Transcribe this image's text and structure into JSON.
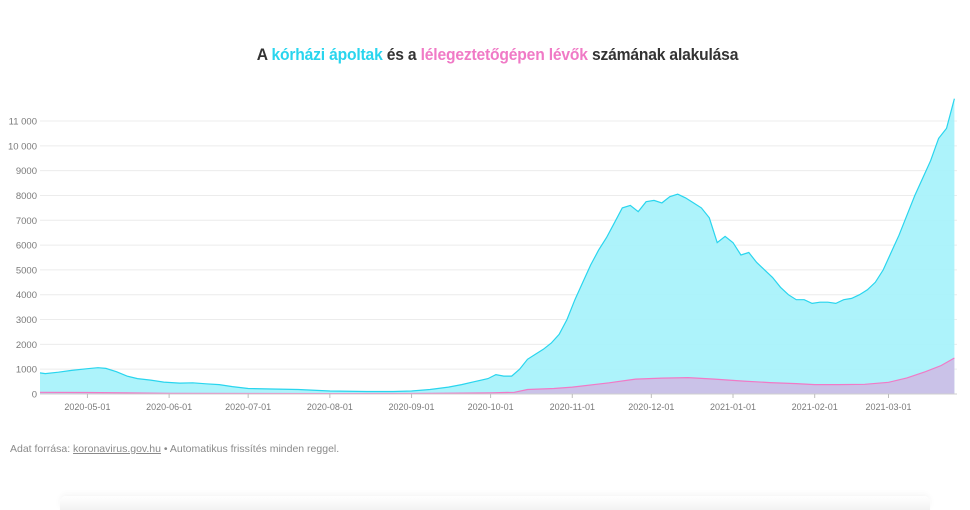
{
  "title": {
    "part1": "A ",
    "hosp_label": "kórházi ápoltak",
    "part2": " és a ",
    "vent_label": "lélegeztetőgépen lévők",
    "part3": " számának alakulása"
  },
  "colors": {
    "hospital": "#29d5ee",
    "hospital_fill": "#a9f2fb",
    "ventilator": "#f07ac6",
    "ventilator_fill": "#cdbde6",
    "title": "#333333"
  },
  "source": {
    "prefix": "Adat forrása:",
    "link": "koronavirus.gov.hu",
    "suffix": "• Automatikus frissítés minden reggel."
  },
  "chart_data": {
    "type": "area",
    "title": "A kórházi ápoltak és a lélegeztetőgépen lévők számának alakulása",
    "xlabel": "",
    "ylabel": "",
    "ylim": [
      0,
      11000
    ],
    "xlim": [
      "2020-04-13",
      "2021-03-27"
    ],
    "grid": true,
    "y_ticks": [
      0,
      1000,
      2000,
      3000,
      4000,
      5000,
      6000,
      7000,
      8000,
      9000,
      10000,
      11000
    ],
    "y_tick_labels": [
      "0",
      "1000",
      "2000",
      "3000",
      "4000",
      "5000",
      "6000",
      "7000",
      "8000",
      "9000",
      "10 000",
      "11 000"
    ],
    "x_ticks": [
      "2020-05-01",
      "2020-06-01",
      "2020-07-01",
      "2020-08-01",
      "2020-09-01",
      "2020-10-01",
      "2020-11-01",
      "2020-12-01",
      "2021-01-01",
      "2021-02-01",
      "2021-03-01"
    ],
    "series": [
      {
        "name": "kórházi ápoltak",
        "points": [
          [
            "2020-04-13",
            850
          ],
          [
            "2020-04-15",
            820
          ],
          [
            "2020-04-20",
            880
          ],
          [
            "2020-04-25",
            950
          ],
          [
            "2020-05-01",
            1020
          ],
          [
            "2020-05-05",
            1060
          ],
          [
            "2020-05-08",
            1030
          ],
          [
            "2020-05-12",
            900
          ],
          [
            "2020-05-16",
            720
          ],
          [
            "2020-05-20",
            620
          ],
          [
            "2020-05-25",
            560
          ],
          [
            "2020-05-30",
            480
          ],
          [
            "2020-06-05",
            440
          ],
          [
            "2020-06-10",
            450
          ],
          [
            "2020-06-15",
            410
          ],
          [
            "2020-06-20",
            380
          ],
          [
            "2020-06-25",
            300
          ],
          [
            "2020-07-01",
            220
          ],
          [
            "2020-07-10",
            200
          ],
          [
            "2020-07-20",
            180
          ],
          [
            "2020-08-01",
            120
          ],
          [
            "2020-08-15",
            100
          ],
          [
            "2020-08-25",
            100
          ],
          [
            "2020-09-01",
            120
          ],
          [
            "2020-09-08",
            180
          ],
          [
            "2020-09-15",
            280
          ],
          [
            "2020-09-20",
            380
          ],
          [
            "2020-09-25",
            500
          ],
          [
            "2020-09-30",
            620
          ],
          [
            "2020-10-03",
            780
          ],
          [
            "2020-10-06",
            720
          ],
          [
            "2020-10-09",
            720
          ],
          [
            "2020-10-12",
            1000
          ],
          [
            "2020-10-15",
            1400
          ],
          [
            "2020-10-18",
            1600
          ],
          [
            "2020-10-21",
            1800
          ],
          [
            "2020-10-24",
            2050
          ],
          [
            "2020-10-27",
            2400
          ],
          [
            "2020-10-30",
            3000
          ],
          [
            "2020-11-02",
            3800
          ],
          [
            "2020-11-05",
            4500
          ],
          [
            "2020-11-08",
            5200
          ],
          [
            "2020-11-11",
            5800
          ],
          [
            "2020-11-14",
            6300
          ],
          [
            "2020-11-17",
            6900
          ],
          [
            "2020-11-20",
            7500
          ],
          [
            "2020-11-23",
            7600
          ],
          [
            "2020-11-26",
            7350
          ],
          [
            "2020-11-29",
            7750
          ],
          [
            "2020-12-02",
            7800
          ],
          [
            "2020-12-05",
            7700
          ],
          [
            "2020-12-08",
            7950
          ],
          [
            "2020-12-11",
            8050
          ],
          [
            "2020-12-14",
            7900
          ],
          [
            "2020-12-17",
            7700
          ],
          [
            "2020-12-20",
            7500
          ],
          [
            "2020-12-23",
            7100
          ],
          [
            "2020-12-26",
            6100
          ],
          [
            "2020-12-29",
            6350
          ],
          [
            "2021-01-01",
            6100
          ],
          [
            "2021-01-04",
            5600
          ],
          [
            "2021-01-07",
            5700
          ],
          [
            "2021-01-10",
            5300
          ],
          [
            "2021-01-13",
            5000
          ],
          [
            "2021-01-16",
            4700
          ],
          [
            "2021-01-19",
            4300
          ],
          [
            "2021-01-22",
            4000
          ],
          [
            "2021-01-25",
            3800
          ],
          [
            "2021-01-28",
            3800
          ],
          [
            "2021-01-31",
            3650
          ],
          [
            "2021-02-03",
            3700
          ],
          [
            "2021-02-06",
            3700
          ],
          [
            "2021-02-09",
            3650
          ],
          [
            "2021-02-12",
            3800
          ],
          [
            "2021-02-15",
            3850
          ],
          [
            "2021-02-18",
            4000
          ],
          [
            "2021-02-21",
            4200
          ],
          [
            "2021-02-24",
            4500
          ],
          [
            "2021-02-27",
            5000
          ],
          [
            "2021-03-02",
            5700
          ],
          [
            "2021-03-05",
            6400
          ],
          [
            "2021-03-08",
            7200
          ],
          [
            "2021-03-11",
            8000
          ],
          [
            "2021-03-14",
            8700
          ],
          [
            "2021-03-17",
            9400
          ],
          [
            "2021-03-20",
            10300
          ],
          [
            "2021-03-23",
            10700
          ],
          [
            "2021-03-26",
            11900
          ]
        ]
      },
      {
        "name": "lélegeztetőgépen lévők",
        "points": [
          [
            "2020-04-13",
            70
          ],
          [
            "2020-05-01",
            60
          ],
          [
            "2020-06-01",
            30
          ],
          [
            "2020-07-01",
            20
          ],
          [
            "2020-08-01",
            15
          ],
          [
            "2020-09-01",
            20
          ],
          [
            "2020-09-20",
            35
          ],
          [
            "2020-10-01",
            50
          ],
          [
            "2020-10-10",
            70
          ],
          [
            "2020-10-15",
            180
          ],
          [
            "2020-10-25",
            220
          ],
          [
            "2020-11-01",
            280
          ],
          [
            "2020-11-15",
            450
          ],
          [
            "2020-11-25",
            600
          ],
          [
            "2020-12-05",
            640
          ],
          [
            "2020-12-15",
            660
          ],
          [
            "2020-12-25",
            600
          ],
          [
            "2021-01-05",
            520
          ],
          [
            "2021-01-15",
            460
          ],
          [
            "2021-01-25",
            420
          ],
          [
            "2021-02-01",
            380
          ],
          [
            "2021-02-10",
            380
          ],
          [
            "2021-02-20",
            390
          ],
          [
            "2021-03-01",
            470
          ],
          [
            "2021-03-08",
            650
          ],
          [
            "2021-03-15",
            900
          ],
          [
            "2021-03-21",
            1150
          ],
          [
            "2021-03-26",
            1450
          ]
        ]
      }
    ]
  }
}
